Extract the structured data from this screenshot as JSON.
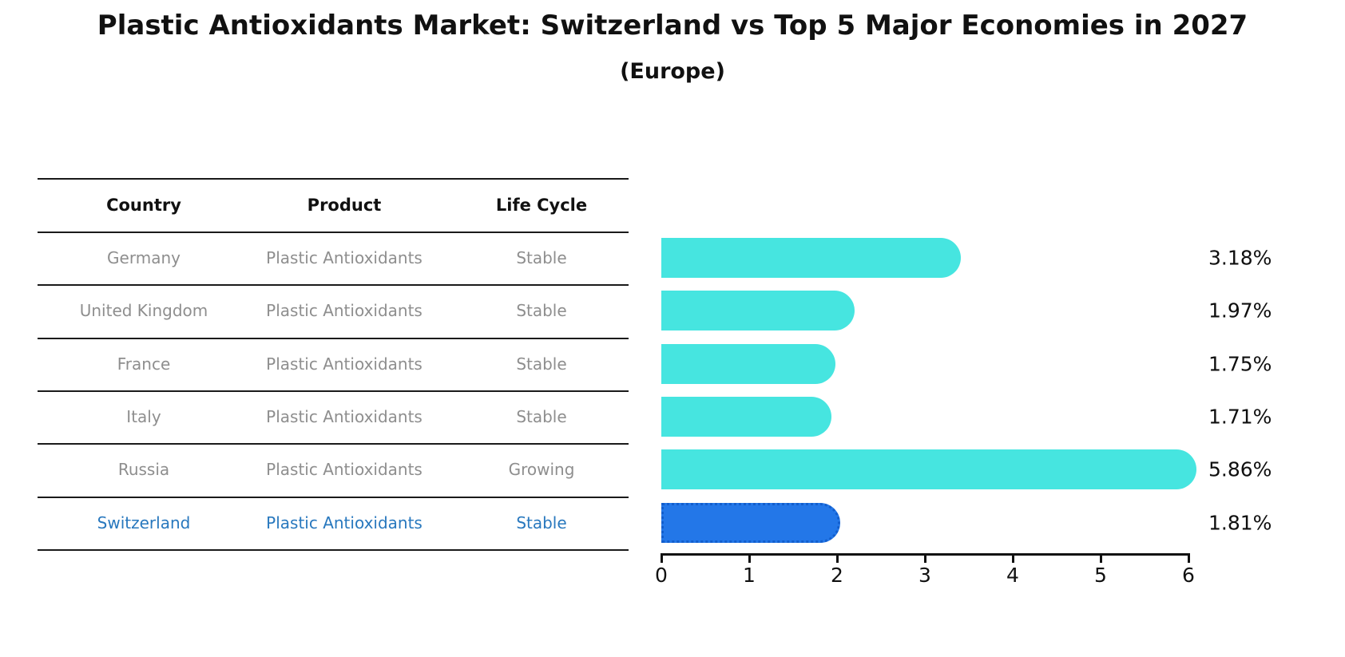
{
  "table": {
    "columns": [
      "Country",
      "Product",
      "Life Cycle"
    ]
  },
  "chart_data": {
    "type": "bar",
    "orientation": "horizontal",
    "title": "Plastic Antioxidants Market: Switzerland vs Top 5 Major Economies in 2027",
    "subtitle": "(Europe)",
    "xlabel": "",
    "xlim": [
      0,
      6
    ],
    "x_ticks": [
      "0",
      "1",
      "2",
      "3",
      "4",
      "5",
      "6"
    ],
    "unit": "%",
    "grid": "off",
    "legend": "none",
    "bar_color": "#46e5e0",
    "highlight_bar_color": "#2377e8",
    "highlight_text_color": "#2878be",
    "rows": [
      {
        "country": "Germany",
        "product": "Plastic Antioxidants",
        "life_cycle": "Stable",
        "value": 3.18,
        "value_label": "3.18%",
        "highlight": false
      },
      {
        "country": "United Kingdom",
        "product": "Plastic Antioxidants",
        "life_cycle": "Stable",
        "value": 1.97,
        "value_label": "1.97%",
        "highlight": false
      },
      {
        "country": "France",
        "product": "Plastic Antioxidants",
        "life_cycle": "Stable",
        "value": 1.75,
        "value_label": "1.75%",
        "highlight": false
      },
      {
        "country": "Italy",
        "product": "Plastic Antioxidants",
        "life_cycle": "Stable",
        "value": 1.71,
        "value_label": "1.71%",
        "highlight": false
      },
      {
        "country": "Russia",
        "product": "Plastic Antioxidants",
        "life_cycle": "Growing",
        "value": 5.86,
        "value_label": "5.86%",
        "highlight": false
      },
      {
        "country": "Switzerland",
        "product": "Plastic Antioxidants",
        "life_cycle": "Stable",
        "value": 1.81,
        "value_label": "1.81%",
        "highlight": true
      }
    ]
  }
}
